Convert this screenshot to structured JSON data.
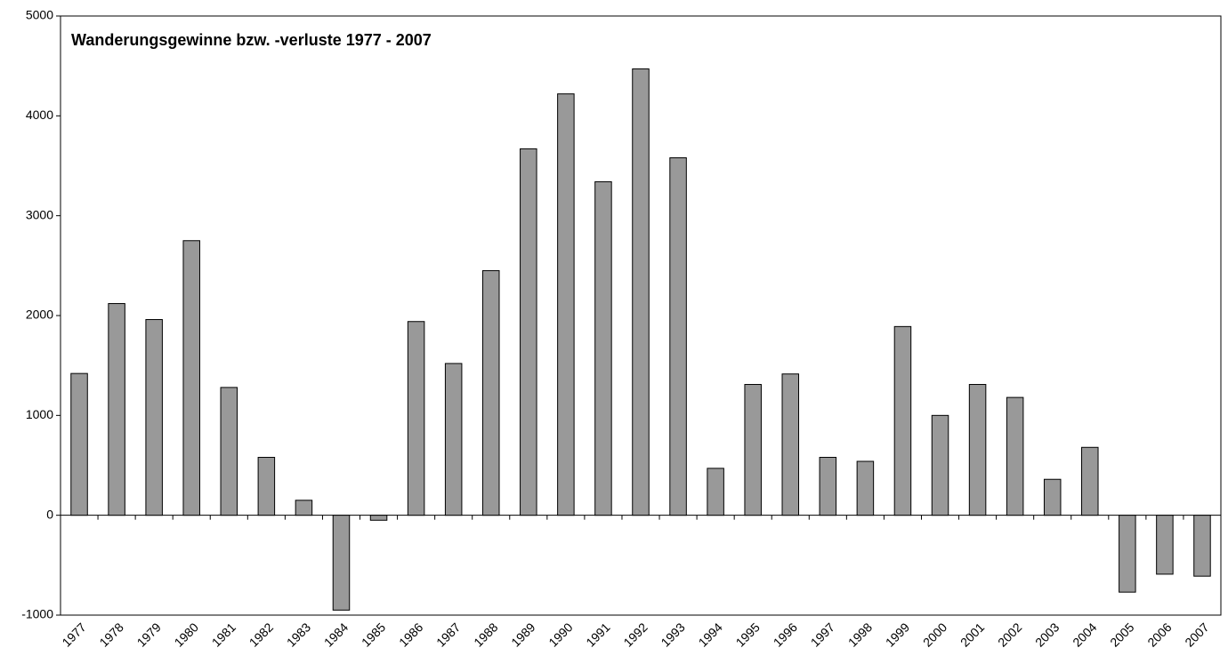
{
  "chart_data": {
    "type": "bar",
    "title": "Wanderungsgewinne bzw. -verluste 1977 - 2007",
    "categories": [
      "1977",
      "1978",
      "1979",
      "1980",
      "1981",
      "1982",
      "1983",
      "1984",
      "1985",
      "1986",
      "1987",
      "1988",
      "1989",
      "1990",
      "1991",
      "1992",
      "1993",
      "1994",
      "1995",
      "1996",
      "1997",
      "1998",
      "1999",
      "2000",
      "2001",
      "2002",
      "2003",
      "2004",
      "2005",
      "2006",
      "2007"
    ],
    "values": [
      1420,
      2120,
      1960,
      2750,
      1280,
      580,
      150,
      -950,
      -50,
      1940,
      1520,
      2450,
      3670,
      4220,
      3340,
      4470,
      3580,
      470,
      1310,
      1415,
      580,
      540,
      1890,
      1000,
      1310,
      1180,
      360,
      680,
      -770,
      -590,
      -610
    ],
    "color": "#999999",
    "ylim": [
      -1000,
      5000
    ],
    "yticks": [
      -1000,
      0,
      1000,
      2000,
      3000,
      4000,
      5000
    ],
    "grid": false
  }
}
